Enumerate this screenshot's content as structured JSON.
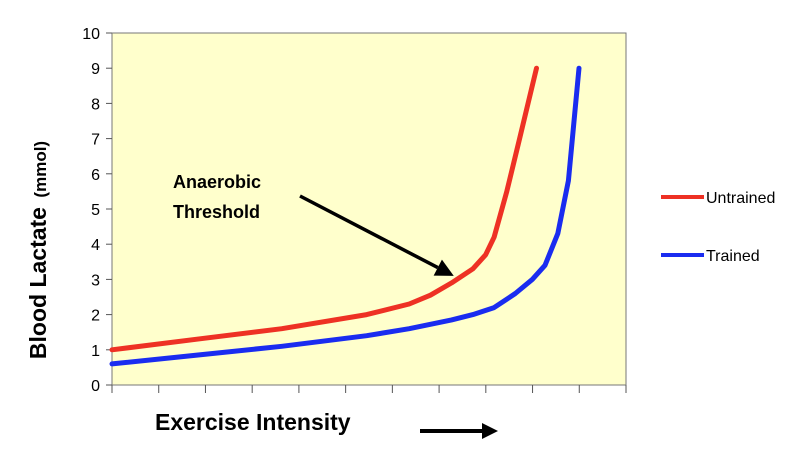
{
  "chart_data": {
    "type": "line",
    "title": "",
    "xlabel": "Exercise Intensity",
    "ylabel": "Blood Lactate",
    "ylabel_unit": "(mmol)",
    "ylim": [
      0,
      10
    ],
    "yticks": [
      "0",
      "1",
      "2",
      "3",
      "4",
      "5",
      "6",
      "7",
      "8",
      "9",
      "10"
    ],
    "xlim": [
      0,
      11
    ],
    "x_tick_labels_shown": false,
    "grid": false,
    "plot_background": "#ffffcc",
    "legend_position": "right",
    "series": [
      {
        "name": "Untrained",
        "color": "#ee3124",
        "points": [
          [
            0,
            1.0
          ],
          [
            2,
            1.3
          ],
          [
            4,
            1.6
          ],
          [
            6,
            2.0
          ],
          [
            7,
            2.3
          ],
          [
            7.5,
            2.55
          ],
          [
            8,
            2.9
          ],
          [
            8.5,
            3.3
          ],
          [
            8.8,
            3.7
          ],
          [
            9,
            4.2
          ],
          [
            9.3,
            5.5
          ],
          [
            9.6,
            7.0
          ],
          [
            10,
            9.0
          ]
        ]
      },
      {
        "name": "Trained",
        "color": "#1a2cf0",
        "points": [
          [
            0,
            0.6
          ],
          [
            2,
            0.85
          ],
          [
            4,
            1.1
          ],
          [
            6,
            1.4
          ],
          [
            7,
            1.6
          ],
          [
            8,
            1.85
          ],
          [
            8.5,
            2.0
          ],
          [
            9,
            2.2
          ],
          [
            9.5,
            2.6
          ],
          [
            9.9,
            3.0
          ],
          [
            10.2,
            3.4
          ],
          [
            10.5,
            4.3
          ],
          [
            10.75,
            5.8
          ],
          [
            11,
            9.0
          ]
        ]
      }
    ],
    "annotations": [
      {
        "text_lines": [
          "Anaerobic",
          "Threshold"
        ],
        "target": [
          8.05,
          3.1
        ]
      }
    ]
  }
}
